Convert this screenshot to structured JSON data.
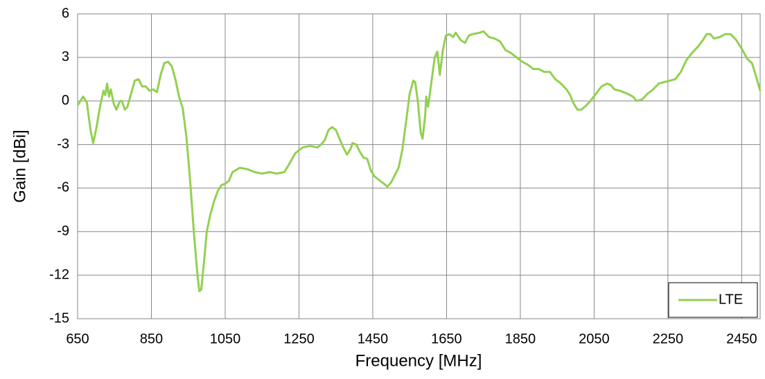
{
  "chart_data": {
    "type": "line",
    "x_label": "Frequency [MHz]",
    "y_label": "Gain [dBi]",
    "xlim": [
      650,
      2500
    ],
    "xticks": [
      650,
      850,
      1050,
      1250,
      1450,
      1650,
      1850,
      2050,
      2250,
      2450
    ],
    "ylim": [
      -15,
      6
    ],
    "yticks": [
      -15,
      -12,
      -9,
      -6,
      -3,
      0,
      3,
      6
    ],
    "grid": true,
    "legend": "lower right",
    "x": [
      650,
      665,
      675,
      685,
      692,
      700,
      710,
      720,
      725,
      730,
      735,
      740,
      748,
      755,
      765,
      770,
      778,
      785,
      795,
      805,
      815,
      825,
      835,
      845,
      855,
      865,
      875,
      885,
      895,
      905,
      915,
      925,
      935,
      945,
      955,
      965,
      975,
      980,
      985,
      993,
      1000,
      1010,
      1020,
      1030,
      1040,
      1050,
      1060,
      1070,
      1090,
      1110,
      1130,
      1150,
      1170,
      1190,
      1210,
      1220,
      1240,
      1260,
      1280,
      1300,
      1310,
      1320,
      1330,
      1340,
      1350,
      1360,
      1370,
      1380,
      1390,
      1395,
      1405,
      1415,
      1425,
      1435,
      1445,
      1455,
      1470,
      1480,
      1490,
      1500,
      1510,
      1520,
      1530,
      1540,
      1550,
      1560,
      1565,
      1572,
      1580,
      1585,
      1592,
      1595,
      1600,
      1610,
      1618,
      1625,
      1632,
      1640,
      1648,
      1658,
      1668,
      1675,
      1688,
      1700,
      1710,
      1720,
      1740,
      1750,
      1765,
      1780,
      1795,
      1810,
      1825,
      1840,
      1855,
      1870,
      1885,
      1900,
      1915,
      1930,
      1945,
      1960,
      1975,
      1985,
      1995,
      2005,
      2015,
      2025,
      2040,
      2055,
      2070,
      2085,
      2095,
      2105,
      2120,
      2140,
      2155,
      2165,
      2180,
      2195,
      2210,
      2225,
      2240,
      2255,
      2270,
      2285,
      2300,
      2315,
      2330,
      2345,
      2355,
      2365,
      2375,
      2390,
      2405,
      2420,
      2435,
      2450,
      2465,
      2478,
      2490,
      2500
    ],
    "series": [
      {
        "name": "LTE",
        "color": "#92d050",
        "values": [
          -0.3,
          0.3,
          -0.1,
          -2.0,
          -2.9,
          -2.0,
          -0.5,
          0.7,
          0.4,
          1.2,
          0.3,
          0.8,
          -0.2,
          -0.6,
          0,
          0,
          -0.6,
          -0.4,
          0.5,
          1.4,
          1.5,
          1.0,
          1.0,
          0.7,
          0.8,
          0.6,
          1.8,
          2.6,
          2.7,
          2.4,
          1.5,
          0.3,
          -0.5,
          -2.5,
          -5.5,
          -9,
          -12,
          -13.1,
          -13.0,
          -11,
          -9,
          -7.8,
          -6.9,
          -6.2,
          -5.8,
          -5.7,
          -5.5,
          -4.9,
          -4.6,
          -4.7,
          -4.9,
          -5.0,
          -4.9,
          -5.0,
          -4.9,
          -4.5,
          -3.6,
          -3.2,
          -3.1,
          -3.2,
          -3.0,
          -2.7,
          -2.0,
          -1.8,
          -2.0,
          -2.6,
          -3.2,
          -3.7,
          -3.3,
          -2.9,
          -3.0,
          -3.5,
          -3.9,
          -4.0,
          -4.8,
          -5.2,
          -5.5,
          -5.7,
          -5.9,
          -5.6,
          -5.1,
          -4.6,
          -3.4,
          -1.5,
          0.5,
          1.4,
          1.3,
          0,
          -2.2,
          -2.6,
          -1.0,
          0.3,
          -0.4,
          1.5,
          3.0,
          3.4,
          1.8,
          3.5,
          4.5,
          4.6,
          4.4,
          4.7,
          4.2,
          4.0,
          4.5,
          4.6,
          4.7,
          4.8,
          4.4,
          4.3,
          4.1,
          3.5,
          3.3,
          3.0,
          2.7,
          2.5,
          2.2,
          2.2,
          2.0,
          2.0,
          1.5,
          1.2,
          0.8,
          0.4,
          -0.2,
          -0.6,
          -0.6,
          -0.4,
          0,
          0.5,
          1.0,
          1.2,
          1.1,
          0.8,
          0.7,
          0.5,
          0.3,
          0,
          0.1,
          0.5,
          0.8,
          1.2,
          1.3,
          1.4,
          1.5,
          2.0,
          2.8,
          3.3,
          3.7,
          4.2,
          4.6,
          4.6,
          4.3,
          4.4,
          4.6,
          4.6,
          4.2,
          3.6,
          2.9,
          2.6,
          1.6,
          0.7
        ]
      }
    ]
  }
}
